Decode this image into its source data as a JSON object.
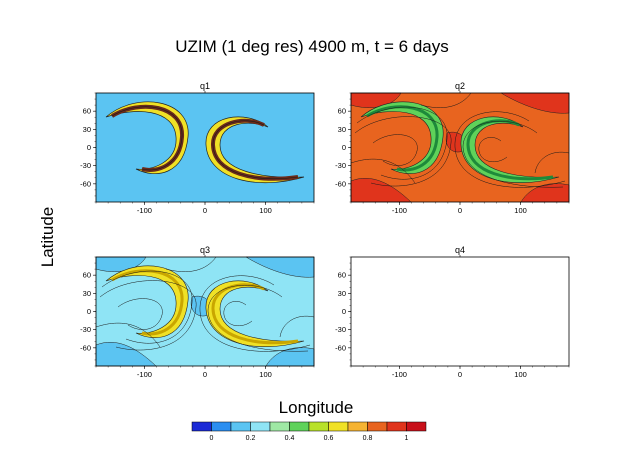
{
  "figure": {
    "title": "UZIM (1 deg res) 4900 m, t = 6 days",
    "xlabel": "Longitude",
    "ylabel": "Latitude"
  },
  "chart_data": {
    "type": "heatmap",
    "subtype": "filled contour maps (4 panels)",
    "title": "UZIM (1 deg res) 4900 m, t = 6 days",
    "xlabel": "Longitude",
    "ylabel": "Latitude",
    "xlim": [
      -180,
      180
    ],
    "ylim": [
      -90,
      90
    ],
    "xticks": [
      -100,
      0,
      100
    ],
    "yticks": [
      60,
      30,
      0,
      -30,
      -60
    ],
    "panels": [
      {
        "name": "q1",
        "background": "#5bc4f2",
        "pattern": "two-crescents",
        "has_data": true
      },
      {
        "name": "q2",
        "background": "#e8641f",
        "pattern": "swirled-field",
        "has_data": true
      },
      {
        "name": "q3",
        "background": "#8fe4f5",
        "pattern": "swirled-field",
        "has_data": true
      },
      {
        "name": "q4",
        "background": "#ffffff",
        "pattern": "empty",
        "has_data": false
      }
    ],
    "colorbar": {
      "colors": [
        "#1b2ad6",
        "#2b8ef0",
        "#5bc4f2",
        "#8fe4f5",
        "#9fe8a4",
        "#5fd25a",
        "#b8e12a",
        "#f0e126",
        "#f5b332",
        "#e8641f",
        "#e0341c",
        "#c8101a"
      ],
      "tick_labels": [
        "0",
        "0.2",
        "0.4",
        "0.6",
        "0.8",
        "1"
      ]
    }
  }
}
